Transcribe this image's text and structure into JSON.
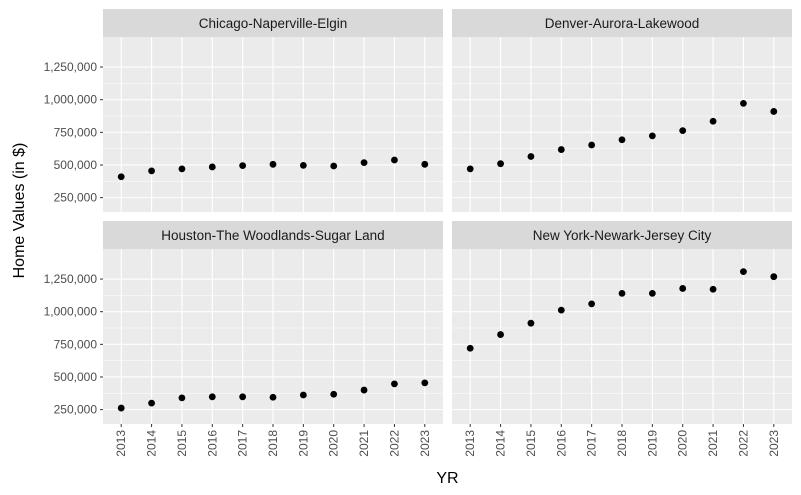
{
  "chart_data": {
    "type": "scatter",
    "layout": "facet-grid 2x2",
    "xlabel": "YR",
    "ylabel": "Home Values (in $)",
    "x": [
      "2013",
      "2014",
      "2015",
      "2016",
      "2017",
      "2018",
      "2019",
      "2020",
      "2021",
      "2022",
      "2023"
    ],
    "y_ticks": [
      "250,000",
      "500,000",
      "750,000",
      "1,000,000",
      "1,250,000"
    ],
    "ylim": [
      140000,
      1480000
    ],
    "grid": true,
    "colors": {
      "panel_bg": "#ebebeb",
      "grid_major": "#ffffff",
      "strip_bg": "#d9d9d9",
      "point": "#000000",
      "tick_text": "#4d4d4d"
    },
    "panels": [
      {
        "name": "Chicago-Naperville-Elgin",
        "values": [
          410000,
          455000,
          470000,
          485000,
          495000,
          505000,
          497000,
          492000,
          518000,
          538000,
          505000
        ]
      },
      {
        "name": "Denver-Aurora-Lakewood",
        "values": [
          470000,
          510000,
          565000,
          618000,
          653000,
          693000,
          723000,
          763000,
          835000,
          972000,
          910000
        ]
      },
      {
        "name": "Houston-The Woodlands-Sugar Land",
        "values": [
          262000,
          300000,
          340000,
          348000,
          348000,
          345000,
          362000,
          368000,
          400000,
          447000,
          455000
        ]
      },
      {
        "name": "New York-Newark-Jersey City",
        "values": [
          720000,
          825000,
          912000,
          1012000,
          1060000,
          1140000,
          1140000,
          1178000,
          1172000,
          1307000,
          1268000
        ]
      }
    ]
  }
}
